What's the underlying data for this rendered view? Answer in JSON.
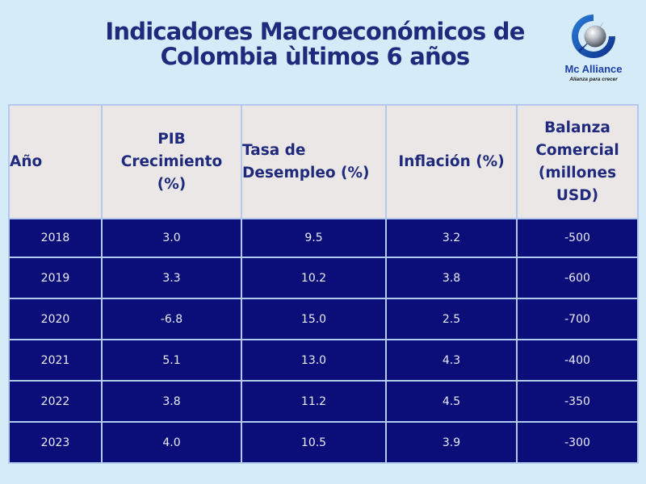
{
  "header": {
    "title_line1": "Indicadores Macroeconómicos de",
    "title_line2": "Colombia ùltimos 6 años"
  },
  "logo": {
    "name": "Mc Alliance",
    "tagline": "Alianza para crecer",
    "icon": "globe-swoosh-icon"
  },
  "table": {
    "columns": [
      {
        "line1": "Año"
      },
      {
        "line1": "PIB",
        "line2": "Crecimiento",
        "line3": "(%)"
      },
      {
        "line1": "Tasa de",
        "line2": "Desempleo (%)"
      },
      {
        "line1": "Inflación (%)"
      },
      {
        "line1": "Balanza",
        "line2": "Comercial",
        "line3": "(millones",
        "line4": "USD)"
      }
    ],
    "rows": [
      [
        "2018",
        "3.0",
        "9.5",
        "3.2",
        "-500"
      ],
      [
        "2019",
        "3.3",
        "10.2",
        "3.8",
        "-600"
      ],
      [
        "2020",
        "-6.8",
        "15.0",
        "2.5",
        "-700"
      ],
      [
        "2021",
        "5.1",
        "13.0",
        "4.3",
        "-400"
      ],
      [
        "2022",
        "3.8",
        "11.2",
        "4.5",
        "-350"
      ],
      [
        "2023",
        "4.0",
        "10.5",
        "3.9",
        "-300"
      ]
    ]
  },
  "colors": {
    "background": "#d6ebf8",
    "title": "#1f2a7c",
    "header_cell": "#ebe7e7",
    "body_cell": "#0b0d78",
    "body_text": "#e8ebfa",
    "grid": "#b4c9ee",
    "logo_text": "#1c3fa8"
  }
}
